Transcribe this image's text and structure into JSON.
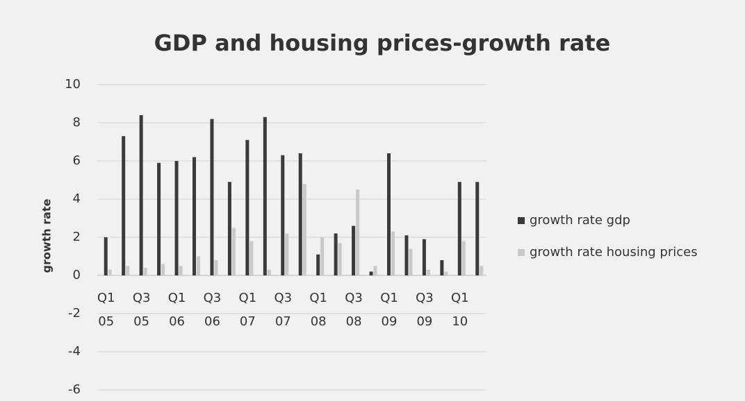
{
  "chart_data": {
    "type": "bar",
    "title": "GDP and housing prices-growth rate",
    "y_label": "growth rate",
    "categories": [
      "Q1 05",
      null,
      "Q3 05",
      null,
      "Q1 06",
      null,
      "Q3 06",
      null,
      "Q1 07",
      null,
      "Q3 07",
      null,
      "Q1 08",
      null,
      "Q3 08",
      null,
      "Q1 09",
      null,
      "Q3 09",
      null,
      "Q1 10",
      null
    ],
    "series": [
      {
        "name": "growth rate gdp",
        "color": "#3a3a3a",
        "values": [
          2.0,
          7.3,
          8.4,
          5.9,
          6.0,
          6.2,
          8.2,
          4.9,
          7.1,
          8.3,
          6.3,
          6.4,
          1.1,
          2.2,
          2.6,
          0.2,
          6.4,
          2.1,
          1.9,
          0.8,
          4.9,
          4.9
        ]
      },
      {
        "name": "growth rate housing prices",
        "color": "#c9c9c9",
        "values": [
          0.3,
          0.5,
          0.4,
          0.6,
          0.5,
          1.0,
          0.8,
          2.5,
          1.8,
          0.3,
          2.2,
          4.8,
          2.0,
          1.7,
          4.5,
          0.5,
          2.3,
          1.4,
          0.3,
          0.2,
          1.8,
          0.5
        ]
      }
    ],
    "ylim": [
      -6,
      10
    ],
    "yticks": [
      -6,
      -4,
      -2,
      0,
      2,
      4,
      6,
      8,
      10
    ],
    "grid": true,
    "legend": "right"
  }
}
